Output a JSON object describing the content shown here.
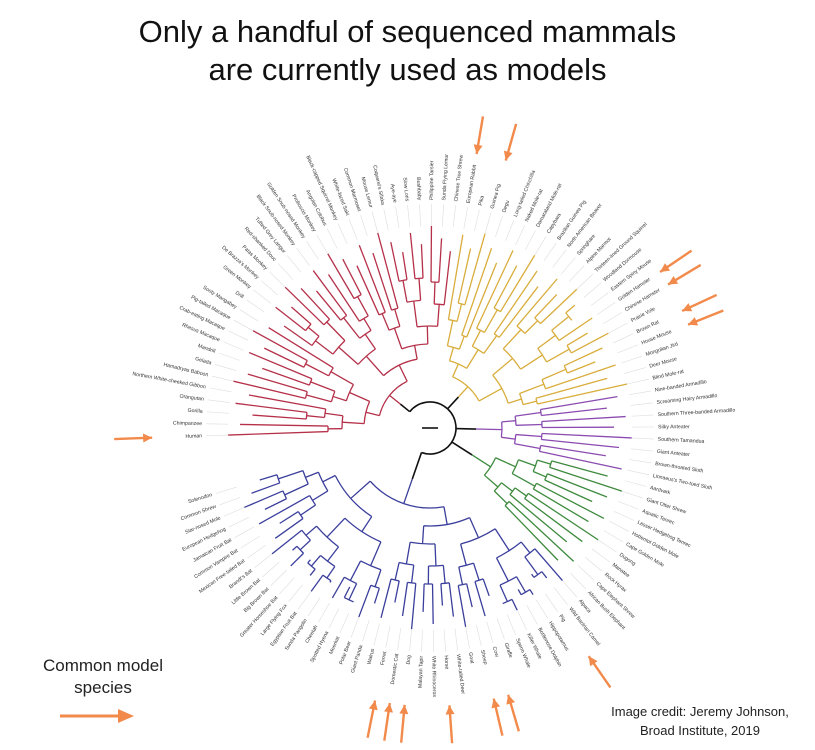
{
  "title": {
    "line1": "Only a handful of sequenced mammals",
    "line2": "are currently used as models"
  },
  "legend": {
    "label_line1": "Common model",
    "label_line2": "species",
    "arrow_color": "#f28a4b"
  },
  "credit": {
    "line1": "Image credit: Jeremy Johnson,",
    "line2": "Broad Institute, 2019"
  },
  "clade_colors": {
    "primates": "#b5314a",
    "xenarthra": "#8b4bb0",
    "afrotheria": "#3e8a3e",
    "laurasiatheria": "#3b3f9c",
    "glires": "#d9ad3c",
    "root": "#111111"
  },
  "tree": {
    "leaves": [
      {
        "name": "Human",
        "model": true
      },
      {
        "name": "Chimpanzee",
        "model": false
      },
      {
        "name": "Gorilla",
        "model": false
      },
      {
        "name": "Orangutan",
        "model": false
      },
      {
        "name": "Northern White-cheeked Gibbon",
        "model": false
      },
      {
        "name": "Hamadryas Baboon",
        "model": false
      },
      {
        "name": "Gelada",
        "model": false
      },
      {
        "name": "Mandrill",
        "model": false
      },
      {
        "name": "Rhesus Macaque",
        "model": false
      },
      {
        "name": "Crab-eating Macaque",
        "model": false
      },
      {
        "name": "Pig-tailed Macaque",
        "model": false
      },
      {
        "name": "Sooty Mangabey",
        "model": false
      },
      {
        "name": "Drill",
        "model": false
      },
      {
        "name": "Green Monkey",
        "model": false
      },
      {
        "name": "De Brazza's Monkey",
        "model": false
      },
      {
        "name": "Patas Monkey",
        "model": false
      },
      {
        "name": "Red-shanked Douc",
        "model": false
      },
      {
        "name": "Tufted Grey Langur",
        "model": false
      },
      {
        "name": "Black Snub-nosed Monkey",
        "model": false
      },
      {
        "name": "Golden Snub-nosed Monkey",
        "model": false
      },
      {
        "name": "Proboscis Monkey",
        "model": false
      },
      {
        "name": "Angolan Colobus",
        "model": false
      },
      {
        "name": "Black-capped Squirrel Monkey",
        "model": false
      },
      {
        "name": "White-faced Saki",
        "model": false
      },
      {
        "name": "Common Marmoset",
        "model": false
      },
      {
        "name": "Mouse Lemur",
        "model": false
      },
      {
        "name": "Coquerel's Sifaka",
        "model": false
      },
      {
        "name": "Aye-aye",
        "model": false
      },
      {
        "name": "Slow Loris",
        "model": false
      },
      {
        "name": "Bushbaby",
        "model": false
      },
      {
        "name": "Philippine Tarsier",
        "model": false
      },
      {
        "name": "Sunda Flying Lemur",
        "model": false
      },
      {
        "name": "Chinese Tree Shrew",
        "model": false
      },
      {
        "name": "European Rabbit",
        "model": true
      },
      {
        "name": "Pika",
        "model": false
      },
      {
        "name": "Guinea Pig",
        "model": true
      },
      {
        "name": "Degu",
        "model": false
      },
      {
        "name": "Long-tailed Chinchilla",
        "model": false
      },
      {
        "name": "Naked Mole-rat",
        "model": false
      },
      {
        "name": "Damaraland Mole-rat",
        "model": false
      },
      {
        "name": "Capybara",
        "model": false
      },
      {
        "name": "Brazilian Guinea Pig",
        "model": false
      },
      {
        "name": "North American Beaver",
        "model": false
      },
      {
        "name": "Springhare",
        "model": false
      },
      {
        "name": "Alpine Marmot",
        "model": false
      },
      {
        "name": "Thirteen-lined Ground Squirrel",
        "model": false
      },
      {
        "name": "Woodland Dormouse",
        "model": false
      },
      {
        "name": "Eastern Spiny Mouse",
        "model": false
      },
      {
        "name": "Golden Hamster",
        "model": true
      },
      {
        "name": "Chinese Hamster",
        "model": true
      },
      {
        "name": "Prairie Vole",
        "model": false
      },
      {
        "name": "Brown Rat",
        "model": true
      },
      {
        "name": "House Mouse",
        "model": true
      },
      {
        "name": "Mongolian Jird",
        "model": false
      },
      {
        "name": "Deer Mouse",
        "model": false
      },
      {
        "name": "Blind Mole-rat",
        "model": false
      },
      {
        "name": "Nine-banded Armadillo",
        "model": false
      },
      {
        "name": "Screaming Hairy Armadillo",
        "model": false
      },
      {
        "name": "Southern Three-banded Armadillo",
        "model": false
      },
      {
        "name": "Silky Anteater",
        "model": false
      },
      {
        "name": "Southern Tamandua",
        "model": false
      },
      {
        "name": "Giant Anteater",
        "model": false
      },
      {
        "name": "Brown-throated Sloth",
        "model": false
      },
      {
        "name": "Linnaeus's Two-toed Sloth",
        "model": false
      },
      {
        "name": "Aardvark",
        "model": false
      },
      {
        "name": "Giant Otter Shrew",
        "model": false
      },
      {
        "name": "Aquatic Tenrec",
        "model": false
      },
      {
        "name": "Lesser Hedgehog Tenrec",
        "model": false
      },
      {
        "name": "Hottentot Golden Mole",
        "model": false
      },
      {
        "name": "Cape Golden Mole",
        "model": false
      },
      {
        "name": "Dugong",
        "model": false
      },
      {
        "name": "Manatee",
        "model": false
      },
      {
        "name": "Rock Hyrax",
        "model": false
      },
      {
        "name": "Cape Elephant Shrew",
        "model": false
      },
      {
        "name": "African Bush Elephant",
        "model": false
      },
      {
        "name": "Alpaca",
        "model": false
      },
      {
        "name": "Wild Bactrian Camel",
        "model": false
      },
      {
        "name": "Pig",
        "model": true
      },
      {
        "name": "Hippopotamus",
        "model": false
      },
      {
        "name": "Bottlenose Dolphin",
        "model": false
      },
      {
        "name": "Killer Whale",
        "model": false
      },
      {
        "name": "Sperm Whale",
        "model": false
      },
      {
        "name": "Giraffe",
        "model": false
      },
      {
        "name": "Cow",
        "model": true
      },
      {
        "name": "Sheep",
        "model": true
      },
      {
        "name": "Goat",
        "model": false
      },
      {
        "name": "White-tailed Deer",
        "model": false
      },
      {
        "name": "Horse",
        "model": true
      },
      {
        "name": "White Rhinoceros",
        "model": false
      },
      {
        "name": "Malayan Tapir",
        "model": false
      },
      {
        "name": "Dog",
        "model": true
      },
      {
        "name": "Domestic Cat",
        "model": true
      },
      {
        "name": "Ferret",
        "model": true
      },
      {
        "name": "Walrus",
        "model": false
      },
      {
        "name": "Giant Panda",
        "model": false
      },
      {
        "name": "Polar Bear",
        "model": false
      },
      {
        "name": "Meerkat",
        "model": false
      },
      {
        "name": "Spotted Hyena",
        "model": false
      },
      {
        "name": "Cheetah",
        "model": false
      },
      {
        "name": "Sunda Pangolin",
        "model": false
      },
      {
        "name": "Egyptian Fruit Bat",
        "model": false
      },
      {
        "name": "Large Flying Fox",
        "model": false
      },
      {
        "name": "Greater Horseshoe Bat",
        "model": false
      },
      {
        "name": "Big Brown Bat",
        "model": false
      },
      {
        "name": "Little Brown Bat",
        "model": false
      },
      {
        "name": "Brandt's Bat",
        "model": false
      },
      {
        "name": "Mexican Free-tailed Bat",
        "model": false
      },
      {
        "name": "Common Vampire Bat",
        "model": false
      },
      {
        "name": "Jamaican Fruit Bat",
        "model": false
      },
      {
        "name": "European Hedgehog",
        "model": false
      },
      {
        "name": "Star-nosed Mole",
        "model": false
      },
      {
        "name": "Common Shrew",
        "model": false
      },
      {
        "name": "Solenodon",
        "model": false
      }
    ]
  }
}
